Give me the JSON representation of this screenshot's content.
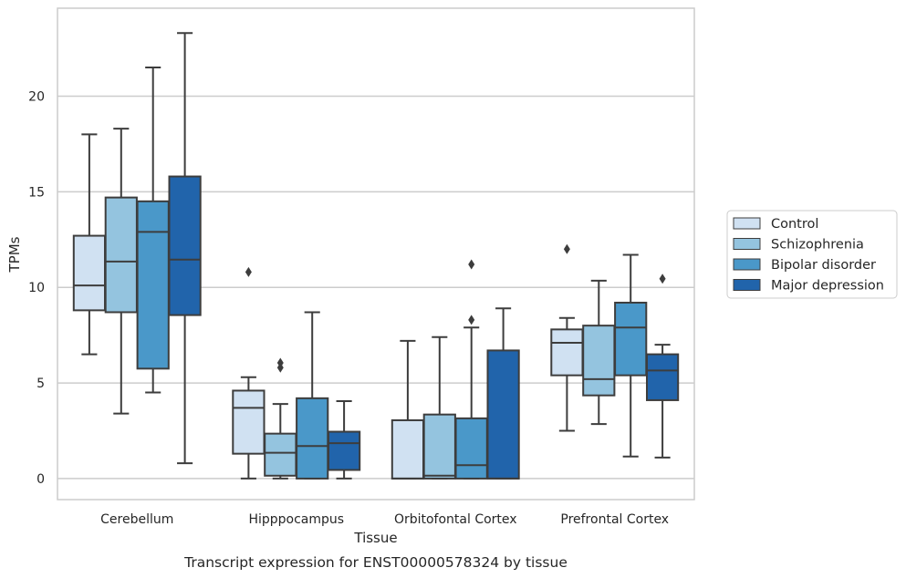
{
  "chart_data": {
    "type": "boxplot",
    "ylabel": "TPMs",
    "xlabel": "Tissue",
    "caption": "Transcript expression for ENST00000578324 by tissue",
    "ylim": [
      -1.1,
      24.6
    ],
    "yticks": [
      0,
      5,
      10,
      15,
      20
    ],
    "grid": "horizontal",
    "legend_position": "right",
    "categories": [
      "Cerebellum",
      "Hipppocampus",
      "Orbitofontal Cortex",
      "Prefrontal Cortex"
    ],
    "series": [
      {
        "name": "Control",
        "color": "#d0e1f2",
        "boxes": [
          {
            "whislo": 6.5,
            "q1": 8.8,
            "med": 10.1,
            "q3": 12.7,
            "whishi": 18.0,
            "fliers": []
          },
          {
            "whislo": 0.0,
            "q1": 1.3,
            "med": 3.7,
            "q3": 4.6,
            "whishi": 5.3,
            "fliers": [
              10.8
            ]
          },
          {
            "whislo": 0.0,
            "q1": 0.0,
            "med": 0.0,
            "q3": 3.05,
            "whishi": 7.2,
            "fliers": []
          },
          {
            "whislo": 2.5,
            "q1": 5.4,
            "med": 7.1,
            "q3": 7.8,
            "whishi": 8.4,
            "fliers": [
              12.0
            ]
          }
        ]
      },
      {
        "name": "Schizophrenia",
        "color": "#94c4df",
        "boxes": [
          {
            "whislo": 3.4,
            "q1": 8.7,
            "med": 11.35,
            "q3": 14.7,
            "whishi": 18.3,
            "fliers": []
          },
          {
            "whislo": 0.0,
            "q1": 0.15,
            "med": 1.35,
            "q3": 2.35,
            "whishi": 3.9,
            "fliers": [
              5.8,
              6.05
            ]
          },
          {
            "whislo": 0.0,
            "q1": 0.0,
            "med": 0.15,
            "q3": 3.35,
            "whishi": 7.4,
            "fliers": []
          },
          {
            "whislo": 2.85,
            "q1": 4.35,
            "med": 5.2,
            "q3": 8.0,
            "whishi": 10.35,
            "fliers": []
          }
        ]
      },
      {
        "name": "Bipolar disorder",
        "color": "#4a98c9",
        "boxes": [
          {
            "whislo": 4.5,
            "q1": 5.75,
            "med": 12.9,
            "q3": 14.5,
            "whishi": 21.5,
            "fliers": []
          },
          {
            "whislo": 0.0,
            "q1": 0.0,
            "med": 1.7,
            "q3": 4.2,
            "whishi": 8.7,
            "fliers": []
          },
          {
            "whislo": 0.0,
            "q1": 0.0,
            "med": 0.7,
            "q3": 3.15,
            "whishi": 7.9,
            "fliers": [
              8.3,
              11.2
            ]
          },
          {
            "whislo": 1.15,
            "q1": 5.4,
            "med": 7.9,
            "q3": 9.2,
            "whishi": 11.7,
            "fliers": []
          }
        ]
      },
      {
        "name": "Major depression",
        "color": "#2164ab",
        "boxes": [
          {
            "whislo": 0.8,
            "q1": 8.55,
            "med": 11.45,
            "q3": 15.8,
            "whishi": 23.3,
            "fliers": []
          },
          {
            "whislo": 0.0,
            "q1": 0.45,
            "med": 1.85,
            "q3": 2.45,
            "whishi": 4.05,
            "fliers": []
          },
          {
            "whislo": 0.0,
            "q1": 0.0,
            "med": 0.0,
            "q3": 6.7,
            "whishi": 8.9,
            "fliers": []
          },
          {
            "whislo": 1.1,
            "q1": 4.1,
            "med": 5.65,
            "q3": 6.5,
            "whishi": 7.0,
            "fliers": [
              10.45
            ]
          }
        ]
      }
    ]
  }
}
